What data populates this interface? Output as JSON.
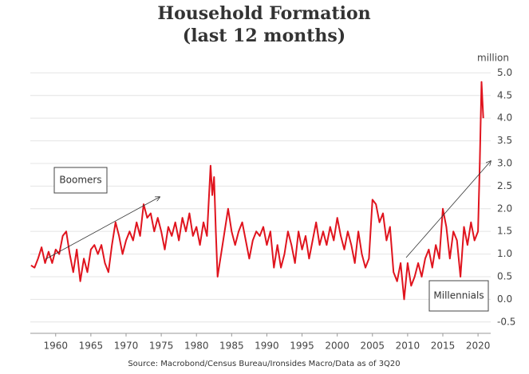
{
  "chart_data": {
    "type": "line",
    "title": "Household Formation",
    "subtitle": "(last 12 months)",
    "y_unit": "million",
    "source": "Source: Macrobond/Census Bureau/Ironsides Macro/Data as of 3Q20",
    "annotations": [
      "Boomers",
      "Millennials"
    ],
    "color": "#e0141e",
    "grid": true,
    "xlim": [
      1956.4,
      2021.8
    ],
    "xticks": [
      1960,
      1965,
      1970,
      1975,
      1980,
      1985,
      1990,
      1995,
      2000,
      2005,
      2010,
      2015,
      2020
    ],
    "ylim": [
      -0.75,
      5.2
    ],
    "yticks": [
      -0.5,
      {
        "value": 0,
        "label": "0.0"
      },
      0.5,
      {
        "value": 1,
        "label": "1.0"
      },
      1.5,
      {
        "value": 2,
        "label": "2.0"
      },
      2.5,
      {
        "value": 3,
        "label": "3.0"
      },
      3.5,
      {
        "value": 4,
        "label": "4.0"
      },
      4.5,
      {
        "value": 5,
        "label": "5.0"
      }
    ],
    "x": [
      1956.5,
      1957,
      1957.5,
      1958,
      1958.5,
      1959,
      1959.5,
      1960,
      1960.5,
      1961,
      1961.5,
      1962,
      1962.5,
      1963,
      1963.5,
      1964,
      1964.5,
      1965,
      1965.5,
      1966,
      1966.5,
      1967,
      1967.5,
      1968,
      1968.5,
      1969,
      1969.5,
      1970,
      1970.5,
      1971,
      1971.5,
      1972,
      1972.5,
      1973,
      1973.5,
      1974,
      1974.5,
      1975,
      1975.5,
      1976,
      1976.5,
      1977,
      1977.5,
      1978,
      1978.5,
      1979,
      1979.5,
      1980,
      1980.5,
      1981,
      1981.5,
      1982,
      1982.25,
      1982.5,
      1982.75,
      1983,
      1983.5,
      1984,
      1984.5,
      1985,
      1985.5,
      1986,
      1986.5,
      1987,
      1987.5,
      1988,
      1988.5,
      1989,
      1989.5,
      1990,
      1990.5,
      1991,
      1991.5,
      1992,
      1992.5,
      1993,
      1993.5,
      1994,
      1994.5,
      1995,
      1995.5,
      1996,
      1996.5,
      1997,
      1997.5,
      1998,
      1998.5,
      1999,
      1999.5,
      2000,
      2000.5,
      2001,
      2001.5,
      2002,
      2002.5,
      2003,
      2003.5,
      2004,
      2004.5,
      2005,
      2005.5,
      2006,
      2006.5,
      2007,
      2007.5,
      2008,
      2008.5,
      2009,
      2009.5,
      2010,
      2010.5,
      2011,
      2011.5,
      2012,
      2012.5,
      2013,
      2013.5,
      2014,
      2014.5,
      2015,
      2015.5,
      2016,
      2016.5,
      2017,
      2017.5,
      2018,
      2018.5,
      2019,
      2019.5,
      2020,
      2020.25,
      2020.5,
      2020.75
    ],
    "values": [
      0.75,
      0.7,
      0.9,
      1.15,
      0.8,
      1.05,
      0.8,
      1.1,
      1.0,
      1.4,
      1.5,
      1.0,
      0.6,
      1.1,
      0.4,
      0.9,
      0.6,
      1.1,
      1.2,
      1.0,
      1.2,
      0.8,
      0.6,
      1.2,
      1.7,
      1.4,
      1.0,
      1.3,
      1.5,
      1.3,
      1.7,
      1.4,
      2.1,
      1.8,
      1.9,
      1.5,
      1.8,
      1.5,
      1.1,
      1.6,
      1.4,
      1.7,
      1.3,
      1.8,
      1.5,
      1.9,
      1.4,
      1.6,
      1.2,
      1.7,
      1.4,
      2.95,
      2.3,
      2.7,
      1.5,
      0.5,
      1.0,
      1.5,
      2.0,
      1.5,
      1.2,
      1.5,
      1.7,
      1.3,
      0.9,
      1.3,
      1.5,
      1.4,
      1.6,
      1.2,
      1.5,
      0.7,
      1.2,
      0.7,
      1.0,
      1.5,
      1.2,
      0.8,
      1.5,
      1.1,
      1.4,
      0.9,
      1.3,
      1.7,
      1.2,
      1.5,
      1.2,
      1.6,
      1.3,
      1.8,
      1.4,
      1.1,
      1.5,
      1.2,
      0.8,
      1.5,
      1.0,
      0.7,
      0.9,
      2.2,
      2.1,
      1.7,
      1.9,
      1.3,
      1.6,
      0.6,
      0.4,
      0.8,
      0.0,
      0.8,
      0.3,
      0.5,
      0.8,
      0.5,
      0.9,
      1.1,
      0.7,
      1.2,
      0.9,
      2.0,
      1.6,
      0.9,
      1.5,
      1.3,
      0.5,
      1.6,
      1.2,
      1.7,
      1.3,
      1.5,
      3.0,
      4.8,
      4.0
    ]
  }
}
